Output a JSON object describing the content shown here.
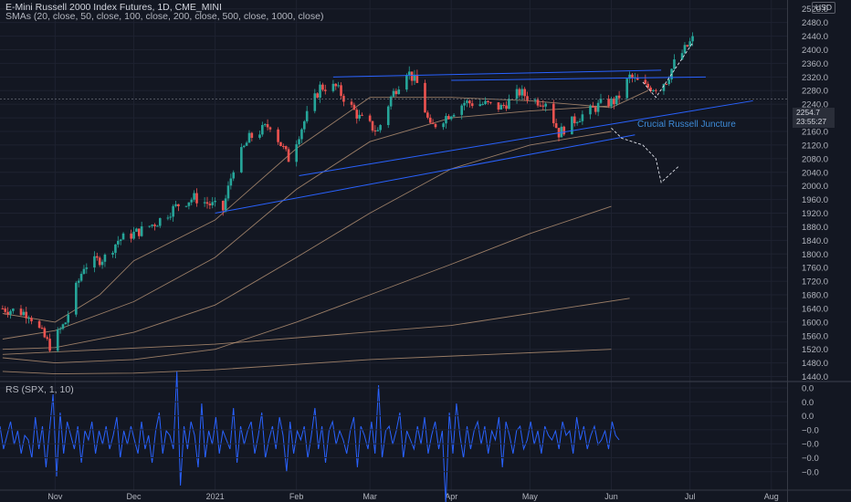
{
  "header": {
    "title": "E-Mini Russell 2000 Index Futures, 1D, CME_MINI",
    "sma_label": "SMAs (20, close, 50, close, 100, close, 200, close, 500, close, 1000, close)",
    "rs_label": "RS (SPX, 1, 10)",
    "currency": "USD"
  },
  "annotation": "Crucial Russell Juncture",
  "current_price": {
    "label1": "2254.7",
    "label2": "23:55:27"
  },
  "colors": {
    "background": "#131722",
    "up": "#26a69a",
    "down": "#ef5350",
    "trendline": "#2962ff",
    "rs": "#2962ff",
    "sma": "#c8a07d"
  },
  "chart_data": [
    {
      "type": "candlestick",
      "title": "E-Mini Russell 2000 Index Futures, 1D, CME_MINI",
      "ylim": [
        1420,
        2530
      ],
      "y_ticks": [
        2520,
        2480,
        2440,
        2400,
        2360,
        2320,
        2280,
        2240,
        2200,
        2160,
        2120,
        2080,
        2040,
        2000,
        1960,
        1920,
        1880,
        1840,
        1800,
        1760,
        1720,
        1680,
        1640,
        1600,
        1560,
        1520,
        1480,
        1440
      ],
      "x_ticks": [
        "Nov",
        "Dec",
        "2021",
        "Feb",
        "Mar",
        "Apr",
        "May",
        "Jun",
        "Jul",
        "Aug"
      ],
      "x_ticks_dates": [
        "2020-11-01",
        "2020-12-01",
        "2021-01-01",
        "2021-02-01",
        "2021-03-01",
        "2021-04-01",
        "2021-05-01",
        "2021-06-01",
        "2021-07-01",
        "2021-08-01"
      ],
      "xlim": [
        "2020-10-11",
        "2021-08-07"
      ],
      "price_anchors": [
        [
          "2020-10-12",
          1640
        ],
        [
          "2020-10-22",
          1625
        ],
        [
          "2020-10-30",
          1530
        ],
        [
          "2020-11-05",
          1600
        ],
        [
          "2020-11-09",
          1700
        ],
        [
          "2020-11-12",
          1765
        ],
        [
          "2020-11-20",
          1790
        ],
        [
          "2020-11-25",
          1840
        ],
        [
          "2020-12-04",
          1870
        ],
        [
          "2020-12-10",
          1895
        ],
        [
          "2020-12-18",
          1945
        ],
        [
          "2020-12-24",
          1965
        ],
        [
          "2021-01-04",
          1930
        ],
        [
          "2021-01-08",
          2055
        ],
        [
          "2021-01-14",
          2140
        ],
        [
          "2021-01-22",
          2180
        ],
        [
          "2021-01-29",
          2080
        ],
        [
          "2021-02-04",
          2190
        ],
        [
          "2021-02-10",
          2290
        ],
        [
          "2021-02-16",
          2290
        ],
        [
          "2021-02-25",
          2200
        ],
        [
          "2021-03-04",
          2160
        ],
        [
          "2021-03-09",
          2260
        ],
        [
          "2021-03-15",
          2340
        ],
        [
          "2021-03-19",
          2300
        ],
        [
          "2021-03-24",
          2170
        ],
        [
          "2021-03-31",
          2210
        ],
        [
          "2021-04-06",
          2245
        ],
        [
          "2021-04-14",
          2240
        ],
        [
          "2021-04-20",
          2230
        ],
        [
          "2021-04-27",
          2275
        ],
        [
          "2021-05-03",
          2250
        ],
        [
          "2021-05-07",
          2250
        ],
        [
          "2021-05-12",
          2155
        ],
        [
          "2021-05-19",
          2200
        ],
        [
          "2021-05-24",
          2220
        ],
        [
          "2021-05-28",
          2240
        ],
        [
          "2021-06-03",
          2250
        ],
        [
          "2021-06-08",
          2320
        ],
        [
          "2021-06-14",
          2290
        ],
        [
          "2021-06-18",
          2290
        ],
        [
          "2021-06-22",
          2310
        ],
        [
          "2021-06-25",
          2360
        ],
        [
          "2021-06-29",
          2400
        ],
        [
          "2021-07-02",
          2430
        ]
      ],
      "sma_series": [
        {
          "name": "SMA 20",
          "points": [
            [
              "2020-10-12",
              1625
            ],
            [
              "2020-11-01",
              1600
            ],
            [
              "2020-11-18",
              1680
            ],
            [
              "2020-12-01",
              1780
            ],
            [
              "2021-01-01",
              1900
            ],
            [
              "2021-02-01",
              2110
            ],
            [
              "2021-03-01",
              2260
            ],
            [
              "2021-04-01",
              2260
            ],
            [
              "2021-05-01",
              2250
            ],
            [
              "2021-06-01",
              2230
            ],
            [
              "2021-06-15",
              2280
            ]
          ]
        },
        {
          "name": "SMA 50",
          "points": [
            [
              "2020-10-12",
              1550
            ],
            [
              "2020-11-01",
              1575
            ],
            [
              "2020-12-01",
              1660
            ],
            [
              "2021-01-01",
              1790
            ],
            [
              "2021-02-01",
              1990
            ],
            [
              "2021-03-01",
              2130
            ],
            [
              "2021-04-01",
              2200
            ],
            [
              "2021-05-01",
              2220
            ],
            [
              "2021-06-01",
              2235
            ]
          ]
        },
        {
          "name": "SMA 100",
          "points": [
            [
              "2020-10-12",
              1520
            ],
            [
              "2020-11-01",
              1525
            ],
            [
              "2020-12-01",
              1570
            ],
            [
              "2021-01-01",
              1650
            ],
            [
              "2021-02-01",
              1790
            ],
            [
              "2021-03-01",
              1920
            ],
            [
              "2021-04-01",
              2050
            ],
            [
              "2021-05-01",
              2120
            ],
            [
              "2021-06-01",
              2160
            ]
          ]
        },
        {
          "name": "SMA 200",
          "points": [
            [
              "2020-10-12",
              1495
            ],
            [
              "2020-11-01",
              1480
            ],
            [
              "2020-12-01",
              1490
            ],
            [
              "2021-01-01",
              1520
            ],
            [
              "2021-02-01",
              1600
            ],
            [
              "2021-03-01",
              1680
            ],
            [
              "2021-04-01",
              1770
            ],
            [
              "2021-05-01",
              1860
            ],
            [
              "2021-06-01",
              1940
            ]
          ]
        },
        {
          "name": "SMA 500",
          "points": [
            [
              "2020-10-12",
              1505
            ],
            [
              "2021-01-01",
              1535
            ],
            [
              "2021-04-01",
              1590
            ],
            [
              "2021-06-08",
              1670
            ]
          ]
        },
        {
          "name": "SMA 1000",
          "points": [
            [
              "2020-10-12",
              1455
            ],
            [
              "2020-11-01",
              1448
            ],
            [
              "2020-12-01",
              1450
            ],
            [
              "2021-01-01",
              1460
            ],
            [
              "2021-03-01",
              1490
            ],
            [
              "2021-06-01",
              1520
            ]
          ]
        }
      ],
      "trendlines": [
        [
          [
            "2021-01-01",
            1920
          ],
          [
            "2021-06-10",
            2150
          ]
        ],
        [
          [
            "2021-02-02",
            2030
          ],
          [
            "2021-07-25",
            2250
          ]
        ],
        [
          [
            "2021-02-15",
            2320
          ],
          [
            "2021-06-20",
            2340
          ]
        ],
        [
          [
            "2021-04-01",
            2310
          ],
          [
            "2021-07-07",
            2320
          ]
        ]
      ],
      "projection_path": [
        [
          "2021-06-01",
          2170
        ],
        [
          "2021-06-05",
          2140
        ],
        [
          "2021-06-13",
          2120
        ],
        [
          "2021-06-18",
          2080
        ],
        [
          "2021-06-20",
          2010
        ],
        [
          "2021-06-27",
          2060
        ]
      ],
      "projection_up": [
        [
          "2021-06-13",
          2305
        ],
        [
          "2021-06-18",
          2260
        ],
        [
          "2021-06-25",
          2340
        ],
        [
          "2021-07-02",
          2420
        ]
      ]
    },
    {
      "type": "line",
      "title": "RS (SPX, 1, 10)",
      "name": "RS",
      "y_ticks": [
        "0.0",
        "0.0",
        "0.0",
        "−0.0",
        "−0.0",
        "−0.0",
        "−0.0"
      ],
      "values": [
        0.3,
        -0.2,
        0.1,
        0.4,
        -0.1,
        0.2,
        -0.3,
        0.1,
        0.0,
        -0.4,
        0.5,
        -0.2,
        0.3,
        -0.6,
        0.2,
        1.0,
        -0.8,
        0.6,
        -0.3,
        0.4,
        0.1,
        -0.2,
        0.3,
        -0.5,
        0.2,
        0.0,
        0.4,
        -0.3,
        0.2,
        -0.1,
        0.3,
        -0.2,
        0.1,
        0.5,
        -0.4,
        0.2,
        -0.1,
        0.3,
        0.0,
        -0.3,
        0.4,
        -0.2,
        0.1,
        -0.5,
        0.2,
        0.6,
        -0.3,
        0.2,
        0.1,
        -0.2,
        1.5,
        -1.0,
        0.3,
        -0.2,
        0.4,
        0.1,
        -0.6,
        0.8,
        -0.4,
        0.2,
        -0.1,
        0.5,
        -0.3,
        0.2,
        0.0,
        -0.2,
        0.7,
        -0.5,
        0.3,
        -0.1,
        0.2,
        0.4,
        -0.3,
        0.1,
        0.6,
        -0.4,
        0.0,
        0.3,
        -0.2,
        0.5,
        0.1,
        -0.7,
        0.4,
        -0.3,
        0.2,
        0.0,
        0.3,
        -0.4,
        0.1,
        0.7,
        -0.2,
        0.3,
        -0.5,
        0.2,
        0.4,
        -0.1,
        0.2,
        0.0,
        -0.3,
        0.2,
        0.5,
        -0.6,
        0.3,
        0.1,
        -0.2,
        0.4,
        -0.3,
        1.2,
        -0.4,
        0.2,
        0.3,
        -0.1,
        0.2,
        0.6,
        -0.4,
        0.2,
        0.0,
        -0.2,
        0.3,
        -0.1,
        0.5,
        -0.3,
        0.1,
        0.4,
        -0.2,
        0.2,
        -1.4,
        0.6,
        -0.3,
        0.8,
        0.1,
        -0.4,
        0.3,
        -0.2,
        0.2,
        0.4,
        -0.1,
        0.3,
        -0.3,
        0.2,
        0.0,
        0.5,
        -0.6,
        0.4,
        0.1,
        -0.3,
        0.2,
        0.3,
        -0.2,
        0.0,
        0.4,
        -0.1,
        0.2,
        -0.3,
        0.3,
        0.1,
        0.0,
        0.2,
        -0.2,
        0.4,
        0.1,
        0.2,
        -0.3,
        0.5,
        0.0,
        0.3,
        -0.2,
        0.1,
        0.3,
        -0.1,
        0.0,
        0.2,
        -0.2,
        0.4,
        0.1,
        0.0
      ]
    }
  ]
}
